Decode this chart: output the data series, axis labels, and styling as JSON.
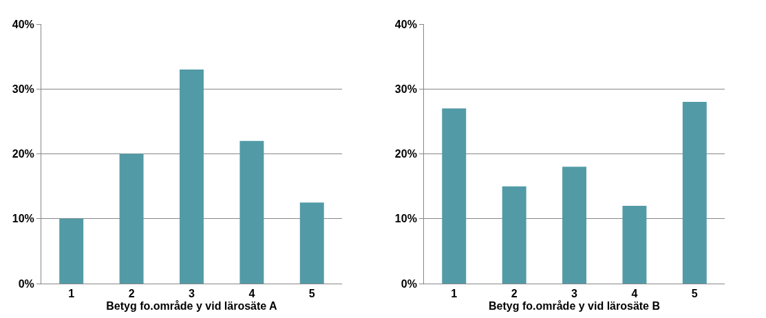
{
  "chart_data": [
    {
      "type": "bar",
      "xlabel": "Betyg fo.område y vid lärosäte A",
      "categories": [
        "1",
        "2",
        "3",
        "4",
        "5"
      ],
      "values": [
        10,
        20,
        33,
        22,
        12.5
      ],
      "color": "#529ba6",
      "ylim": [
        0,
        40
      ],
      "yticks": [
        {
          "value": 0,
          "label": "0%"
        },
        {
          "value": 10,
          "label": "10%"
        },
        {
          "value": 20,
          "label": "20%"
        },
        {
          "value": 30,
          "label": "30%"
        },
        {
          "value": 40,
          "label": "40%"
        }
      ],
      "grid": "y"
    },
    {
      "type": "bar",
      "xlabel": "Betyg fo.område y vid lärosäte B",
      "categories": [
        "1",
        "2",
        "3",
        "4",
        "5"
      ],
      "values": [
        27,
        15,
        18,
        12,
        28
      ],
      "color": "#529ba6",
      "ylim": [
        0,
        40
      ],
      "yticks": [
        {
          "value": 0,
          "label": "0%"
        },
        {
          "value": 10,
          "label": "10%"
        },
        {
          "value": 20,
          "label": "20%"
        },
        {
          "value": 30,
          "label": "30%"
        },
        {
          "value": 40,
          "label": "40%"
        }
      ],
      "grid": "y"
    }
  ]
}
